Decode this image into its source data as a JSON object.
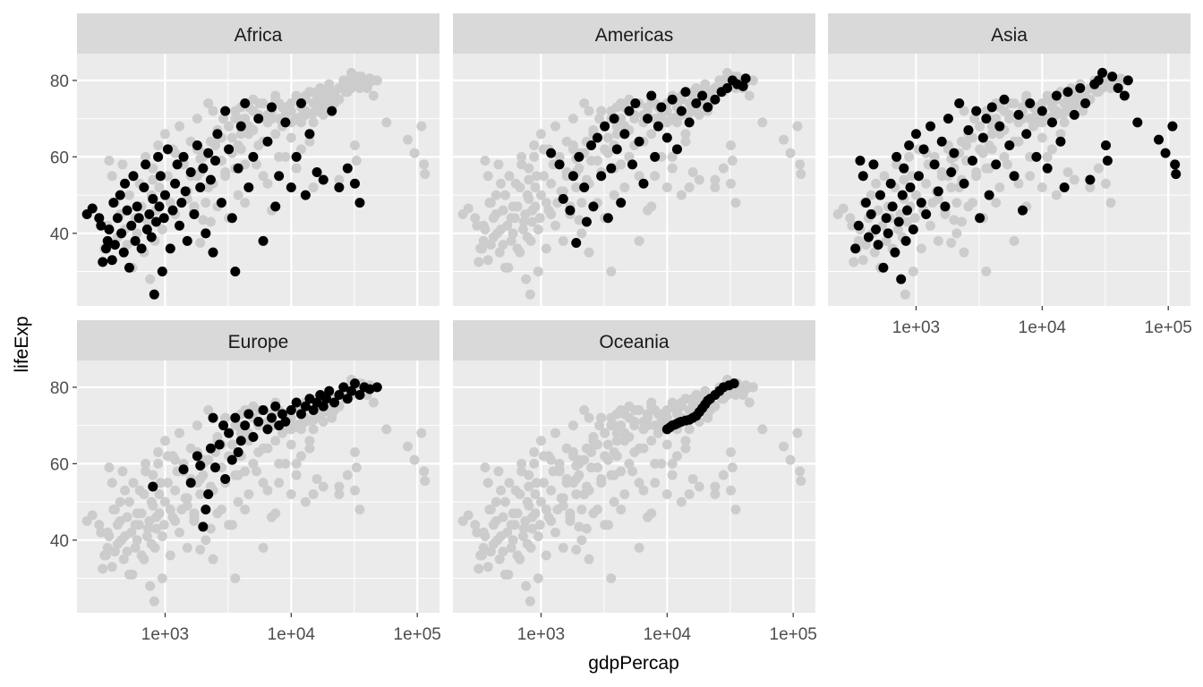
{
  "chart_data": {
    "type": "scatter",
    "layout": "facet_wrap",
    "xlabel": "gdpPercap",
    "ylabel": "lifeExp",
    "x_scale": "log10",
    "xlim": [
      200,
      150000
    ],
    "ylim": [
      21,
      87
    ],
    "x_ticks": [
      1000,
      10000,
      100000
    ],
    "x_tick_labels": [
      "1e+03",
      "1e+04",
      "1e+05"
    ],
    "y_ticks": [
      40,
      60,
      80
    ],
    "y_tick_labels": [
      "40",
      "60",
      "80"
    ],
    "grid": true,
    "legend": "none",
    "colors": {
      "panel_background": "#ebebeb",
      "strip_background": "#d9d9d9",
      "grid": "#ffffff",
      "background_points": "#cccccc",
      "highlight_points": "#000000"
    },
    "facets": [
      {
        "name": "Africa",
        "points": [
          [
            240,
            45
          ],
          [
            265,
            46.5
          ],
          [
            300,
            44
          ],
          [
            310,
            42
          ],
          [
            320,
            32.5
          ],
          [
            340,
            36
          ],
          [
            350,
            38
          ],
          [
            360,
            41
          ],
          [
            380,
            33
          ],
          [
            390,
            48
          ],
          [
            400,
            37
          ],
          [
            420,
            44
          ],
          [
            440,
            50
          ],
          [
            450,
            40
          ],
          [
            470,
            35
          ],
          [
            480,
            53
          ],
          [
            500,
            46
          ],
          [
            520,
            31
          ],
          [
            540,
            42
          ],
          [
            560,
            55
          ],
          [
            580,
            38
          ],
          [
            600,
            47
          ],
          [
            620,
            44
          ],
          [
            650,
            36
          ],
          [
            680,
            52
          ],
          [
            700,
            58
          ],
          [
            720,
            41
          ],
          [
            750,
            45
          ],
          [
            780,
            39
          ],
          [
            800,
            49
          ],
          [
            820,
            24
          ],
          [
            850,
            43
          ],
          [
            880,
            60
          ],
          [
            900,
            47
          ],
          [
            920,
            55
          ],
          [
            950,
            30
          ],
          [
            980,
            44
          ],
          [
            1000,
            50
          ],
          [
            1050,
            62
          ],
          [
            1100,
            36
          ],
          [
            1150,
            46
          ],
          [
            1200,
            53
          ],
          [
            1250,
            58
          ],
          [
            1300,
            42
          ],
          [
            1350,
            48
          ],
          [
            1400,
            60
          ],
          [
            1450,
            51
          ],
          [
            1500,
            38
          ],
          [
            1600,
            56
          ],
          [
            1700,
            45
          ],
          [
            1800,
            63
          ],
          [
            1900,
            52
          ],
          [
            2000,
            57
          ],
          [
            2100,
            40
          ],
          [
            2200,
            61
          ],
          [
            2300,
            54
          ],
          [
            2400,
            35
          ],
          [
            2500,
            59
          ],
          [
            2600,
            66
          ],
          [
            2800,
            48
          ],
          [
            3000,
            72
          ],
          [
            3200,
            62
          ],
          [
            3400,
            44
          ],
          [
            3600,
            30
          ],
          [
            3800,
            57
          ],
          [
            4000,
            68
          ],
          [
            4300,
            74
          ],
          [
            4600,
            52
          ],
          [
            5000,
            60
          ],
          [
            5500,
            70
          ],
          [
            6000,
            38
          ],
          [
            6500,
            64
          ],
          [
            7000,
            73
          ],
          [
            7500,
            47
          ],
          [
            8000,
            55
          ],
          [
            9000,
            69
          ],
          [
            10000,
            52
          ],
          [
            11000,
            60
          ],
          [
            12000,
            74
          ],
          [
            13000,
            50
          ],
          [
            14000,
            66
          ],
          [
            16000,
            56
          ],
          [
            18000,
            54
          ],
          [
            21000,
            72
          ],
          [
            24000,
            52
          ],
          [
            28000,
            57
          ],
          [
            32000,
            53
          ],
          [
            35000,
            48
          ]
        ]
      },
      {
        "name": "Americas",
        "points": [
          [
            1200,
            61
          ],
          [
            1400,
            58
          ],
          [
            1500,
            49
          ],
          [
            1700,
            46
          ],
          [
            1800,
            55
          ],
          [
            1900,
            37.5
          ],
          [
            2000,
            60
          ],
          [
            2200,
            52
          ],
          [
            2300,
            43
          ],
          [
            2500,
            63
          ],
          [
            2600,
            47
          ],
          [
            2800,
            65
          ],
          [
            3000,
            55
          ],
          [
            3200,
            68
          ],
          [
            3400,
            44
          ],
          [
            3600,
            57
          ],
          [
            3800,
            70
          ],
          [
            4000,
            62
          ],
          [
            4300,
            48
          ],
          [
            4600,
            66
          ],
          [
            5000,
            72
          ],
          [
            5300,
            58
          ],
          [
            5600,
            74
          ],
          [
            6000,
            64
          ],
          [
            6500,
            53
          ],
          [
            7000,
            70
          ],
          [
            7500,
            76
          ],
          [
            8000,
            60
          ],
          [
            8500,
            68
          ],
          [
            9000,
            73
          ],
          [
            10000,
            65
          ],
          [
            11000,
            75
          ],
          [
            12000,
            62
          ],
          [
            13000,
            72
          ],
          [
            14000,
            77
          ],
          [
            15000,
            69
          ],
          [
            17000,
            74
          ],
          [
            19000,
            76
          ],
          [
            21000,
            73
          ],
          [
            24000,
            75
          ],
          [
            27000,
            77
          ],
          [
            30000,
            78
          ],
          [
            33000,
            80
          ],
          [
            36000,
            79
          ],
          [
            40000,
            78.5
          ],
          [
            42000,
            80.5
          ]
        ]
      },
      {
        "name": "Asia",
        "points": [
          [
            330,
            36
          ],
          [
            350,
            42
          ],
          [
            360,
            59
          ],
          [
            380,
            55
          ],
          [
            400,
            48
          ],
          [
            420,
            39
          ],
          [
            440,
            45
          ],
          [
            460,
            58
          ],
          [
            480,
            41
          ],
          [
            500,
            37
          ],
          [
            520,
            50
          ],
          [
            550,
            31
          ],
          [
            580,
            44
          ],
          [
            600,
            40
          ],
          [
            630,
            53
          ],
          [
            650,
            47
          ],
          [
            680,
            35
          ],
          [
            700,
            60
          ],
          [
            730,
            43
          ],
          [
            760,
            28
          ],
          [
            780,
            50
          ],
          [
            800,
            57
          ],
          [
            830,
            38
          ],
          [
            850,
            46
          ],
          [
            880,
            63
          ],
          [
            900,
            52
          ],
          [
            950,
            41
          ],
          [
            1000,
            66
          ],
          [
            1050,
            55
          ],
          [
            1100,
            48
          ],
          [
            1150,
            62
          ],
          [
            1200,
            45
          ],
          [
            1300,
            68
          ],
          [
            1400,
            58
          ],
          [
            1500,
            51
          ],
          [
            1600,
            64
          ],
          [
            1700,
            47
          ],
          [
            1800,
            70
          ],
          [
            1900,
            56
          ],
          [
            2000,
            61
          ],
          [
            2200,
            74
          ],
          [
            2400,
            53
          ],
          [
            2600,
            67
          ],
          [
            2800,
            59
          ],
          [
            3000,
            72
          ],
          [
            3200,
            44
          ],
          [
            3400,
            65
          ],
          [
            3600,
            70
          ],
          [
            3800,
            50
          ],
          [
            4000,
            73
          ],
          [
            4300,
            58
          ],
          [
            4600,
            68
          ],
          [
            5000,
            75
          ],
          [
            5500,
            63
          ],
          [
            6000,
            55
          ],
          [
            6500,
            71
          ],
          [
            7000,
            46
          ],
          [
            7500,
            66
          ],
          [
            8000,
            74
          ],
          [
            9000,
            60
          ],
          [
            10000,
            72
          ],
          [
            11000,
            57
          ],
          [
            12000,
            69
          ],
          [
            13000,
            76
          ],
          [
            14000,
            64
          ],
          [
            15000,
            52
          ],
          [
            16000,
            77
          ],
          [
            18000,
            71
          ],
          [
            20000,
            78
          ],
          [
            22000,
            74
          ],
          [
            24000,
            54
          ],
          [
            26000,
            79
          ],
          [
            28000,
            80
          ],
          [
            30000,
            82
          ],
          [
            32000,
            63
          ],
          [
            33000,
            59
          ],
          [
            36000,
            81
          ],
          [
            40000,
            78
          ],
          [
            45000,
            76
          ],
          [
            48000,
            80
          ],
          [
            57000,
            69
          ],
          [
            84000,
            64.5
          ],
          [
            95000,
            61
          ],
          [
            108000,
            68
          ],
          [
            113000,
            58
          ],
          [
            115000,
            55.5
          ]
        ]
      },
      {
        "name": "Europe",
        "points": [
          [
            800,
            54
          ],
          [
            1400,
            58.5
          ],
          [
            1600,
            55
          ],
          [
            1800,
            62
          ],
          [
            1900,
            59.5
          ],
          [
            2000,
            43.5
          ],
          [
            2100,
            48
          ],
          [
            2200,
            52
          ],
          [
            2300,
            64
          ],
          [
            2400,
            72
          ],
          [
            2500,
            59
          ],
          [
            2700,
            65
          ],
          [
            2900,
            70
          ],
          [
            3000,
            56
          ],
          [
            3200,
            68
          ],
          [
            3400,
            61
          ],
          [
            3600,
            72
          ],
          [
            3800,
            63
          ],
          [
            4000,
            66
          ],
          [
            4300,
            70
          ],
          [
            4600,
            73
          ],
          [
            5000,
            67
          ],
          [
            5500,
            71
          ],
          [
            6000,
            74
          ],
          [
            6500,
            69
          ],
          [
            7000,
            72
          ],
          [
            7500,
            75
          ],
          [
            8000,
            70
          ],
          [
            8500,
            73
          ],
          [
            9000,
            71
          ],
          [
            10000,
            74
          ],
          [
            11000,
            76
          ],
          [
            12000,
            73
          ],
          [
            13000,
            75
          ],
          [
            14000,
            77
          ],
          [
            15000,
            74
          ],
          [
            16000,
            76
          ],
          [
            17000,
            78
          ],
          [
            18000,
            75
          ],
          [
            19000,
            77
          ],
          [
            20000,
            79
          ],
          [
            22000,
            76
          ],
          [
            24000,
            78
          ],
          [
            26000,
            80
          ],
          [
            28000,
            77
          ],
          [
            30000,
            79
          ],
          [
            32000,
            81
          ],
          [
            35000,
            78
          ],
          [
            38000,
            80
          ],
          [
            42000,
            79.5
          ],
          [
            48000,
            80
          ]
        ]
      },
      {
        "name": "Oceania",
        "points": [
          [
            10000,
            69
          ],
          [
            10500,
            69.5
          ],
          [
            11000,
            70
          ],
          [
            11500,
            70.2
          ],
          [
            12000,
            70.5
          ],
          [
            12500,
            70.8
          ],
          [
            13000,
            71
          ],
          [
            14000,
            71.3
          ],
          [
            15000,
            71.5
          ],
          [
            16000,
            72
          ],
          [
            17000,
            72.5
          ],
          [
            18000,
            73.5
          ],
          [
            19000,
            74.5
          ],
          [
            20000,
            75.5
          ],
          [
            21000,
            76.5
          ],
          [
            22000,
            77
          ],
          [
            24000,
            78
          ],
          [
            26000,
            79
          ],
          [
            28000,
            80
          ],
          [
            31000,
            80.5
          ],
          [
            34000,
            81
          ]
        ]
      }
    ]
  }
}
